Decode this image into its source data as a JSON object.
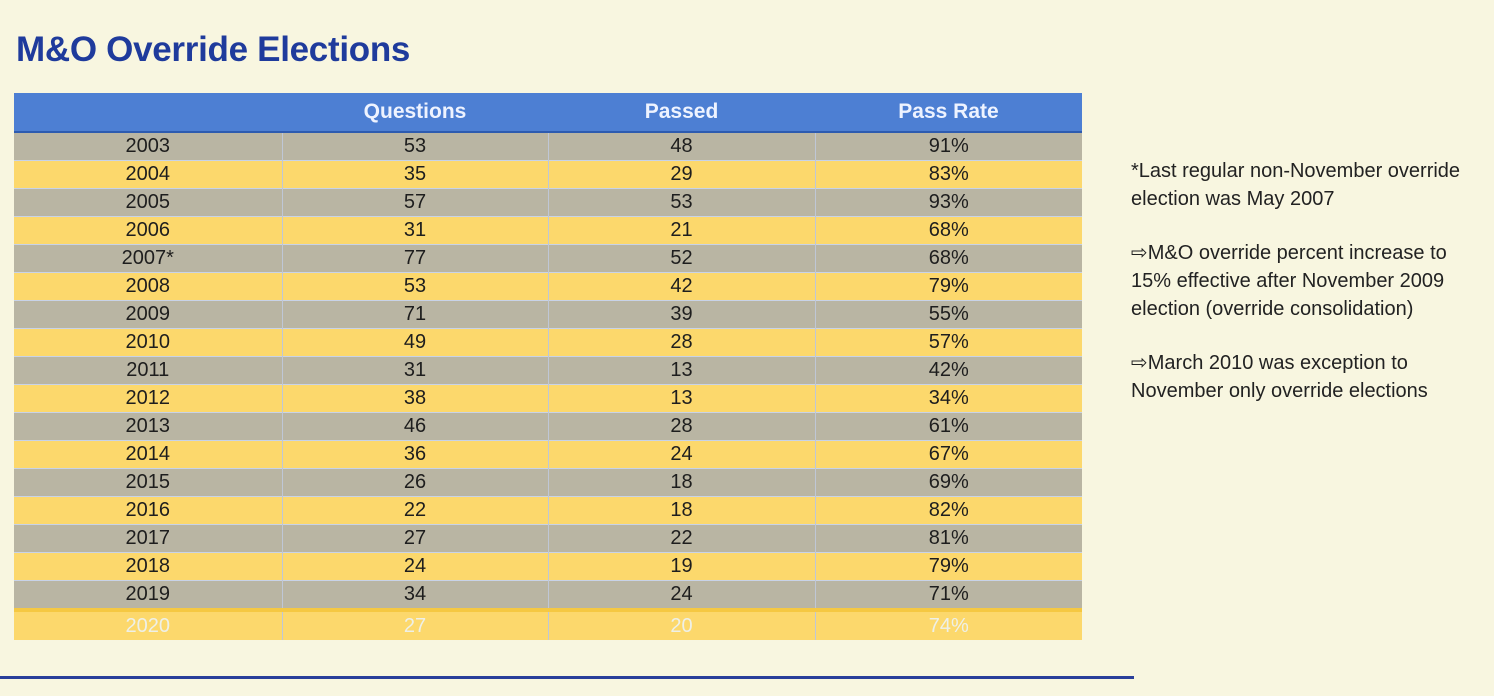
{
  "title": "M&O Override Elections",
  "table": {
    "headers": [
      "",
      "Questions",
      "Passed",
      "Pass Rate"
    ],
    "rows": [
      [
        "2003",
        "53",
        "48",
        "91%"
      ],
      [
        "2004",
        "35",
        "29",
        "83%"
      ],
      [
        "2005",
        "57",
        "53",
        "93%"
      ],
      [
        "2006",
        "31",
        "21",
        "68%"
      ],
      [
        "2007*",
        "77",
        "52",
        "68%"
      ],
      [
        "2008",
        "53",
        "42",
        "79%"
      ],
      [
        "2009",
        "71",
        "39",
        "55%"
      ],
      [
        "2010",
        "49",
        "28",
        "57%"
      ],
      [
        "2011",
        "31",
        "13",
        "42%"
      ],
      [
        "2012",
        "38",
        "13",
        "34%"
      ],
      [
        "2013",
        "46",
        "28",
        "61%"
      ],
      [
        "2014",
        "36",
        "24",
        "67%"
      ],
      [
        "2015",
        "26",
        "18",
        "69%"
      ],
      [
        "2016",
        "22",
        "18",
        "82%"
      ],
      [
        "2017",
        "27",
        "22",
        "81%"
      ],
      [
        "2018",
        "24",
        "19",
        "79%"
      ],
      [
        "2019",
        "34",
        "24",
        "71%"
      ],
      [
        "2020",
        "27",
        "20",
        "74%"
      ]
    ]
  },
  "notes": [
    "*Last regular non-November override election was May 2007",
    "⇨M&O override percent increase to 15% effective after November 2009 election (override consolidation)",
    "⇨March 2010 was exception to November only override elections"
  ],
  "colors": {
    "title": "#1f3b9c",
    "header_bg": "#4d7fd3",
    "row_gray": "#b9b5a3",
    "row_yellow": "#fcd86c",
    "page_bg": "#f8f6e0"
  }
}
